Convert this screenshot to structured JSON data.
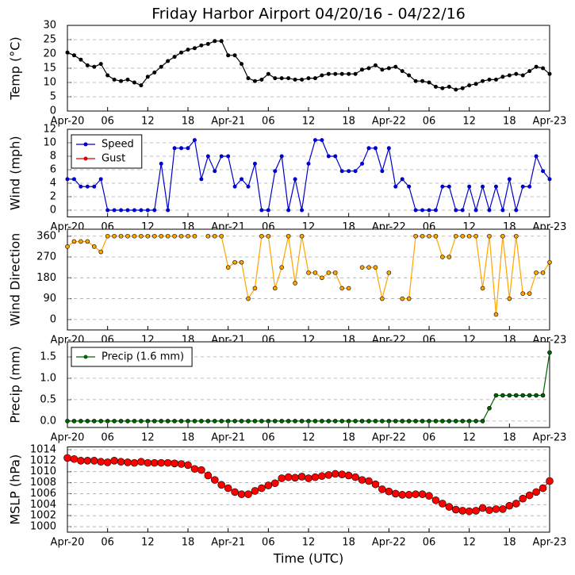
{
  "chart_data": [
    {
      "type": "line",
      "title": "Friday Harbor Airport 04/20/16 - 04/22/16",
      "ylabel": "Temp (°C)",
      "x": [
        0,
        1,
        2,
        3,
        4,
        5,
        6,
        7,
        8,
        9,
        10,
        11,
        12,
        13,
        14,
        15,
        16,
        17,
        18,
        19,
        20,
        21,
        22,
        23,
        24,
        25,
        26,
        27,
        28,
        29,
        30,
        31,
        32,
        33,
        34,
        35,
        36,
        37,
        38,
        39,
        40,
        41,
        42,
        43,
        44,
        45,
        46,
        47,
        48,
        49,
        50,
        51,
        52,
        53,
        54,
        55,
        56,
        57,
        58,
        59,
        60,
        61,
        62,
        63,
        64,
        65,
        66,
        67,
        68,
        69,
        70,
        71,
        72
      ],
      "xlim": [
        0,
        72
      ],
      "xticks": [
        {
          "value": 0,
          "label": "Apr-20"
        },
        {
          "value": 6,
          "label": "06"
        },
        {
          "value": 12,
          "label": "12"
        },
        {
          "value": 18,
          "label": "18"
        },
        {
          "value": 24,
          "label": "Apr-21"
        },
        {
          "value": 30,
          "label": "06"
        },
        {
          "value": 36,
          "label": "12"
        },
        {
          "value": 42,
          "label": "18"
        },
        {
          "value": 48,
          "label": "Apr-22"
        },
        {
          "value": 54,
          "label": "06"
        },
        {
          "value": 60,
          "label": "12"
        },
        {
          "value": 66,
          "label": "18"
        },
        {
          "value": 72,
          "label": "Apr-23"
        }
      ],
      "ylim": [
        0,
        30
      ],
      "yticks": [
        0,
        5,
        10,
        15,
        20,
        25,
        30
      ],
      "grid": true,
      "color": "#000000",
      "values": [
        20.5,
        19.5,
        18,
        16,
        15.5,
        16.5,
        12.5,
        11,
        10.5,
        11,
        10,
        9,
        12,
        13.5,
        15.5,
        17.5,
        19,
        20.5,
        21.5,
        22,
        23,
        23.5,
        24.5,
        24.5,
        19.5,
        19.5,
        16.5,
        11.5,
        10.5,
        11,
        13,
        11.5,
        11.5,
        11.5,
        11,
        11,
        11.5,
        11.5,
        12.5,
        13,
        13,
        13,
        13,
        13,
        14.5,
        15,
        16,
        14.5,
        15,
        15.5,
        14,
        12.5,
        10.5,
        10.5,
        10,
        8.5,
        8,
        8.5,
        7.5,
        8,
        9,
        9.5,
        10.5,
        11,
        11,
        12,
        12.5,
        13,
        12.5,
        14,
        15.5,
        15,
        13
      ]
    },
    {
      "type": "line",
      "ylabel": "Wind (mph)",
      "x": [
        0,
        1,
        2,
        3,
        4,
        5,
        6,
        7,
        8,
        9,
        10,
        11,
        12,
        13,
        14,
        15,
        16,
        17,
        18,
        19,
        20,
        21,
        22,
        23,
        24,
        25,
        26,
        27,
        28,
        29,
        30,
        31,
        32,
        33,
        34,
        35,
        36,
        37,
        38,
        39,
        40,
        41,
        42,
        43,
        44,
        45,
        46,
        47,
        48,
        49,
        50,
        51,
        52,
        53,
        54,
        55,
        56,
        57,
        58,
        59,
        60,
        61,
        62,
        63,
        64,
        65,
        66,
        67,
        68,
        69,
        70,
        71,
        72
      ],
      "xlim": [
        0,
        72
      ],
      "xticks": [
        {
          "value": 0,
          "label": "Apr-20"
        },
        {
          "value": 6,
          "label": "06"
        },
        {
          "value": 12,
          "label": "12"
        },
        {
          "value": 18,
          "label": "18"
        },
        {
          "value": 24,
          "label": "Apr-21"
        },
        {
          "value": 30,
          "label": "06"
        },
        {
          "value": 36,
          "label": "12"
        },
        {
          "value": 42,
          "label": "18"
        },
        {
          "value": 48,
          "label": "Apr-22"
        },
        {
          "value": 54,
          "label": "06"
        },
        {
          "value": 60,
          "label": "12"
        },
        {
          "value": 66,
          "label": "18"
        },
        {
          "value": 72,
          "label": "Apr-23"
        }
      ],
      "ylim": [
        -1,
        12
      ],
      "yticks": [
        0,
        2,
        4,
        6,
        8,
        10,
        12
      ],
      "grid": true,
      "legend": "upper-left",
      "series": [
        {
          "name": "Speed",
          "color": "#0000cc",
          "values": [
            4.6,
            4.6,
            3.5,
            3.5,
            3.5,
            4.6,
            0,
            0,
            0,
            0,
            0,
            0,
            0,
            0,
            6.9,
            0,
            9.2,
            9.2,
            9.2,
            10.4,
            4.6,
            8,
            5.8,
            8,
            8,
            3.5,
            4.6,
            3.5,
            6.9,
            0,
            0,
            5.8,
            8,
            0,
            4.6,
            0,
            6.9,
            10.4,
            10.4,
            8,
            8,
            5.8,
            5.8,
            5.8,
            6.9,
            9.2,
            9.2,
            5.8,
            9.2,
            3.5,
            4.6,
            3.5,
            0,
            0,
            0,
            0,
            3.5,
            3.5,
            0,
            0,
            3.5,
            0,
            3.5,
            0,
            3.5,
            0,
            4.6,
            0,
            3.5,
            3.5,
            8,
            5.8,
            4.6
          ]
        },
        {
          "name": "Gust",
          "color": "#dd0000",
          "values": [
            null,
            null,
            null,
            null,
            null,
            null,
            null,
            null,
            null,
            null,
            null,
            null,
            null,
            null,
            null,
            null,
            null,
            null,
            null,
            null,
            null,
            null,
            null,
            null,
            null,
            null,
            null,
            null,
            null,
            null,
            null,
            null,
            null,
            null,
            null,
            null,
            null,
            null,
            null,
            null,
            null,
            null,
            null,
            null,
            null,
            null,
            null,
            null,
            null,
            null,
            null,
            null,
            null,
            null,
            null,
            null,
            null,
            null,
            null,
            null,
            null,
            null,
            null,
            null,
            null,
            null,
            null,
            null,
            null,
            null,
            null,
            null,
            null
          ]
        }
      ]
    },
    {
      "type": "line",
      "ylabel": "Wind Direction",
      "x": [
        0,
        1,
        2,
        3,
        4,
        5,
        6,
        7,
        8,
        9,
        10,
        11,
        12,
        13,
        14,
        15,
        16,
        17,
        18,
        19,
        20,
        21,
        22,
        23,
        24,
        25,
        26,
        27,
        28,
        29,
        30,
        31,
        32,
        33,
        34,
        35,
        36,
        37,
        38,
        39,
        40,
        41,
        42,
        43,
        44,
        45,
        46,
        47,
        48,
        49,
        50,
        51,
        52,
        53,
        54,
        55,
        56,
        57,
        58,
        59,
        60,
        61,
        62,
        63,
        64,
        65,
        66,
        67,
        68,
        69,
        70,
        71,
        72
      ],
      "xlim": [
        0,
        72
      ],
      "xticks": [
        {
          "value": 0,
          "label": "Apr-20"
        },
        {
          "value": 6,
          "label": "06"
        },
        {
          "value": 12,
          "label": "12"
        },
        {
          "value": 18,
          "label": "18"
        },
        {
          "value": 24,
          "label": "Apr-21"
        },
        {
          "value": 30,
          "label": "06"
        },
        {
          "value": 36,
          "label": "12"
        },
        {
          "value": 42,
          "label": "18"
        },
        {
          "value": 48,
          "label": "Apr-22"
        },
        {
          "value": 54,
          "label": "06"
        },
        {
          "value": 60,
          "label": "12"
        },
        {
          "value": 66,
          "label": "18"
        },
        {
          "value": 72,
          "label": "Apr-23"
        }
      ],
      "ylim": [
        -45,
        390
      ],
      "yticks": [
        0,
        90,
        180,
        270,
        360
      ],
      "grid": true,
      "color": "#ffa500",
      "values": [
        315,
        337,
        337,
        337,
        315,
        292,
        360,
        360,
        360,
        360,
        360,
        360,
        360,
        360,
        360,
        360,
        360,
        360,
        360,
        360,
        null,
        360,
        360,
        360,
        225,
        247,
        247,
        90,
        135,
        360,
        360,
        135,
        225,
        360,
        157,
        360,
        202,
        202,
        180,
        202,
        202,
        135,
        135,
        null,
        225,
        225,
        225,
        90,
        202,
        null,
        90,
        90,
        360,
        360,
        360,
        360,
        270,
        270,
        360,
        360,
        360,
        360,
        135,
        360,
        22,
        360,
        90,
        360,
        112,
        112,
        202,
        202,
        247
      ]
    },
    {
      "type": "line",
      "ylabel": "Precip (mm)",
      "x": [
        0,
        1,
        2,
        3,
        4,
        5,
        6,
        7,
        8,
        9,
        10,
        11,
        12,
        13,
        14,
        15,
        16,
        17,
        18,
        19,
        20,
        21,
        22,
        23,
        24,
        25,
        26,
        27,
        28,
        29,
        30,
        31,
        32,
        33,
        34,
        35,
        36,
        37,
        38,
        39,
        40,
        41,
        42,
        43,
        44,
        45,
        46,
        47,
        48,
        49,
        50,
        51,
        52,
        53,
        54,
        55,
        56,
        57,
        58,
        59,
        60,
        61,
        62,
        63,
        64,
        65,
        66,
        67,
        68,
        69,
        70,
        71,
        72
      ],
      "xlim": [
        0,
        72
      ],
      "xticks": [
        {
          "value": 0,
          "label": "Apr-20"
        },
        {
          "value": 6,
          "label": "06"
        },
        {
          "value": 12,
          "label": "12"
        },
        {
          "value": 18,
          "label": "18"
        },
        {
          "value": 24,
          "label": "Apr-21"
        },
        {
          "value": 30,
          "label": "06"
        },
        {
          "value": 36,
          "label": "12"
        },
        {
          "value": 42,
          "label": "18"
        },
        {
          "value": 48,
          "label": "Apr-22"
        },
        {
          "value": 54,
          "label": "06"
        },
        {
          "value": 60,
          "label": "12"
        },
        {
          "value": 66,
          "label": "18"
        },
        {
          "value": 72,
          "label": "Apr-23"
        }
      ],
      "ylim": [
        -0.15,
        1.85
      ],
      "yticks": [
        {
          "value": 0,
          "label": "0.0"
        },
        {
          "value": 0.5,
          "label": "0.5"
        },
        {
          "value": 1,
          "label": "1.0"
        },
        {
          "value": 1.5,
          "label": "1.5"
        }
      ],
      "grid": true,
      "legend": "upper-left",
      "series": [
        {
          "name": "Precip (1.6 mm)",
          "color": "#006400",
          "values": [
            0,
            0,
            0,
            0,
            0,
            0,
            0,
            0,
            0,
            0,
            0,
            0,
            0,
            0,
            0,
            0,
            0,
            0,
            0,
            0,
            0,
            0,
            0,
            0,
            0,
            0,
            0,
            0,
            0,
            0,
            0,
            0,
            0,
            0,
            0,
            0,
            0,
            0,
            0,
            0,
            0,
            0,
            0,
            0,
            0,
            0,
            0,
            0,
            0,
            0,
            0,
            0,
            0,
            0,
            0,
            0,
            0,
            0,
            0,
            0,
            0,
            0,
            0,
            0.3,
            0.6,
            0.6,
            0.6,
            0.6,
            0.6,
            0.6,
            0.6,
            0.6,
            1.6
          ]
        }
      ]
    },
    {
      "type": "line",
      "ylabel": "MSLP (hPa)",
      "xlabel": "Time (UTC)",
      "x": [
        0,
        1,
        2,
        3,
        4,
        5,
        6,
        7,
        8,
        9,
        10,
        11,
        12,
        13,
        14,
        15,
        16,
        17,
        18,
        19,
        20,
        21,
        22,
        23,
        24,
        25,
        26,
        27,
        28,
        29,
        30,
        31,
        32,
        33,
        34,
        35,
        36,
        37,
        38,
        39,
        40,
        41,
        42,
        43,
        44,
        45,
        46,
        47,
        48,
        49,
        50,
        51,
        52,
        53,
        54,
        55,
        56,
        57,
        58,
        59,
        60,
        61,
        62,
        63,
        64,
        65,
        66,
        67,
        68,
        69,
        70,
        71,
        72
      ],
      "xlim": [
        0,
        72
      ],
      "xticks": [
        {
          "value": 0,
          "label": "Apr-20"
        },
        {
          "value": 6,
          "label": "06"
        },
        {
          "value": 12,
          "label": "12"
        },
        {
          "value": 18,
          "label": "18"
        },
        {
          "value": 24,
          "label": "Apr-21"
        },
        {
          "value": 30,
          "label": "06"
        },
        {
          "value": 36,
          "label": "12"
        },
        {
          "value": 42,
          "label": "18"
        },
        {
          "value": 48,
          "label": "Apr-22"
        },
        {
          "value": 54,
          "label": "06"
        },
        {
          "value": 60,
          "label": "12"
        },
        {
          "value": 66,
          "label": "18"
        },
        {
          "value": 72,
          "label": "Apr-23"
        }
      ],
      "ylim": [
        999,
        1014.5
      ],
      "yticks": [
        1000,
        1002,
        1004,
        1006,
        1008,
        1010,
        1012,
        1014
      ],
      "grid": true,
      "color": "#ff0000",
      "values": [
        1012.5,
        1012.3,
        1012,
        1012,
        1012,
        1011.8,
        1011.7,
        1012,
        1011.8,
        1011.7,
        1011.6,
        1011.8,
        1011.6,
        1011.6,
        1011.6,
        1011.6,
        1011.5,
        1011.4,
        1011.2,
        1010.5,
        1010.3,
        1009.3,
        1008.5,
        1007.6,
        1007,
        1006.3,
        1005.9,
        1005.9,
        1006.5,
        1007,
        1007.5,
        1007.9,
        1008.8,
        1009,
        1008.9,
        1009.1,
        1008.8,
        1009,
        1009.2,
        1009.4,
        1009.6,
        1009.5,
        1009.3,
        1009,
        1008.5,
        1008.3,
        1007.7,
        1006.8,
        1006.4,
        1006,
        1005.8,
        1005.8,
        1005.9,
        1005.9,
        1005.6,
        1004.8,
        1004.2,
        1003.6,
        1003.1,
        1002.9,
        1002.8,
        1002.9,
        1003.4,
        1003,
        1003.2,
        1003.2,
        1003.8,
        1004.2,
        1005.1,
        1005.7,
        1006.3,
        1007,
        1008.3
      ]
    }
  ]
}
